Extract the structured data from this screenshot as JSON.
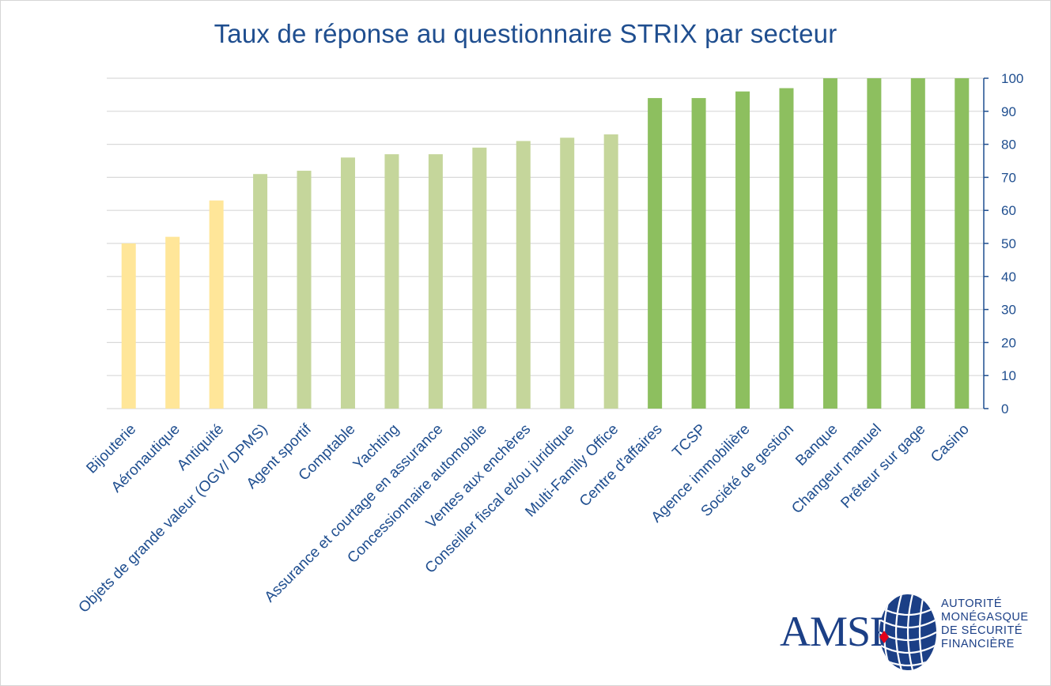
{
  "title": "Taux de réponse au questionnaire STRIX par secteur",
  "logo": {
    "name": "AMSF",
    "tagline": [
      "AUTORITÉ",
      "MONÉGASQUE",
      "DE SÉCURITÉ",
      "FINANCIÈRE"
    ]
  },
  "chart_data": {
    "type": "bar",
    "title": "Taux de réponse au questionnaire STRIX par secteur",
    "xlabel": "",
    "ylabel": "",
    "ylim": [
      0,
      100
    ],
    "yticks": [
      0,
      10,
      20,
      30,
      40,
      50,
      60,
      70,
      80,
      90,
      100
    ],
    "y_axis_side": "right",
    "grid": true,
    "categories": [
      "Bijouterie",
      "Aéronautique",
      "Antiquité",
      "Objets de grande valeur (OGV/ DPMS)",
      "Agent sportif",
      "Comptable",
      "Yachting",
      "Assurance et courtage en assurance",
      "Concessionnaire automobile",
      "Ventes aux enchères",
      "Conseiller fiscal et/ou juridique",
      "Multi-Family Office",
      "Centre d'affaires",
      "TCSP",
      "Agence immobilière",
      "Société de gestion",
      "Banque",
      "Changeur manuel",
      "Prêteur sur gage",
      "Casino"
    ],
    "values": [
      50,
      52,
      63,
      71,
      72,
      76,
      77,
      77,
      79,
      81,
      82,
      83,
      94,
      94,
      96,
      97,
      100,
      100,
      100,
      100
    ],
    "colors": [
      "#ffe699",
      "#ffe699",
      "#ffe699",
      "#c5d69b",
      "#c5d69b",
      "#c5d69b",
      "#c5d69b",
      "#c5d69b",
      "#c5d69b",
      "#c5d69b",
      "#c5d69b",
      "#c5d69b",
      "#8dbf5f",
      "#8dbf5f",
      "#8dbf5f",
      "#8dbf5f",
      "#8dbf5f",
      "#8dbf5f",
      "#8dbf5f",
      "#8dbf5f"
    ],
    "axis_color": "#1f4e8f",
    "label_color": "#1f4e8f",
    "grid_color": "#d9d9d9"
  }
}
